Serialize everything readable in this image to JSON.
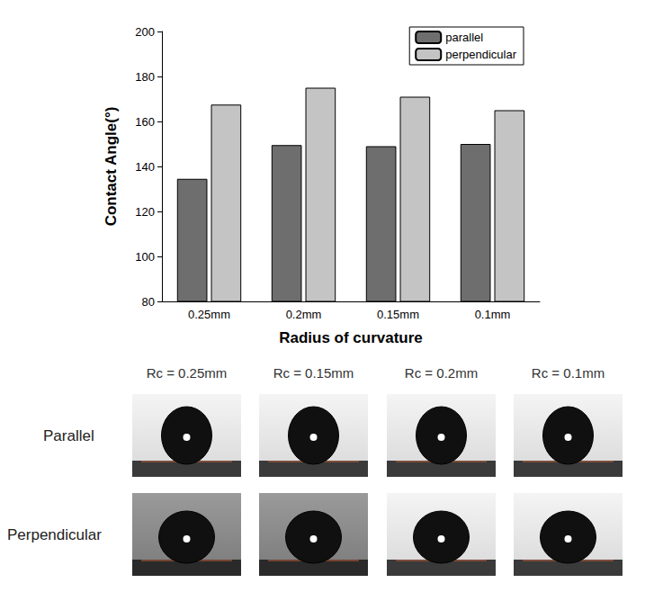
{
  "chart_data": {
    "type": "bar",
    "x_label": "Radius of curvature",
    "y_label": "Contact Angle(°)",
    "categories": [
      "0.25mm",
      "0.2mm",
      "0.15mm",
      "0.1mm"
    ],
    "series": [
      {
        "name": "parallel",
        "color": "#6e6e6e",
        "values": [
          134.5,
          149.5,
          149,
          150
        ]
      },
      {
        "name": "perpendicular",
        "color": "#c4c4c4",
        "values": [
          167.5,
          175,
          171,
          165
        ]
      }
    ],
    "ylim": [
      80,
      200
    ],
    "yticks": [
      80,
      100,
      120,
      140,
      160,
      180,
      200
    ],
    "grid": false,
    "legend": "top-right"
  },
  "photo_grid": {
    "columns": [
      "Rc = 0.25mm",
      "Rc = 0.15mm",
      "Rc = 0.2mm",
      "Rc = 0.1mm"
    ],
    "rows": [
      "Parallel",
      "Perpendicular"
    ]
  }
}
